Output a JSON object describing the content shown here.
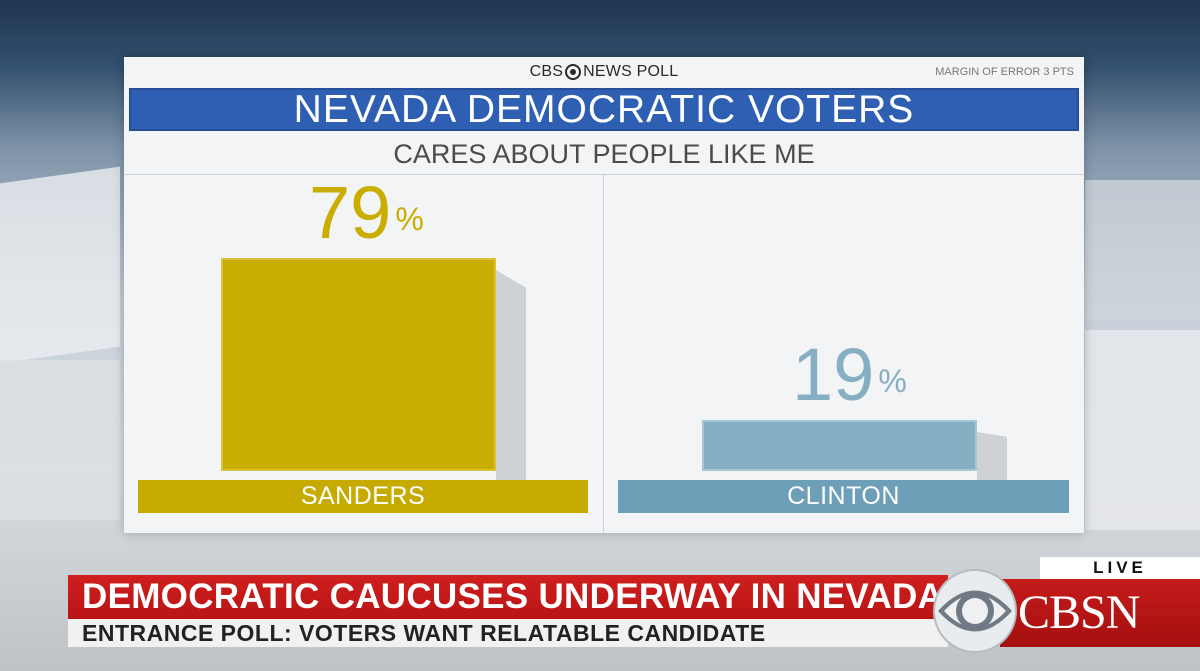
{
  "poll": {
    "brand_left": "CBS",
    "brand_right": "NEWS POLL",
    "margin_of_error": "MARGIN OF ERROR 3 PTS",
    "title": "NEVADA DEMOCRATIC VOTERS",
    "subtitle": "CARES ABOUT PEOPLE LIKE ME"
  },
  "chart_data": {
    "type": "bar",
    "title": "NEVADA DEMOCRATIC VOTERS",
    "subtitle": "CARES ABOUT PEOPLE LIKE ME",
    "categories": [
      "SANDERS",
      "CLINTON"
    ],
    "values": [
      79,
      19
    ],
    "value_labels": [
      "79",
      "19"
    ],
    "unit": "%",
    "colors": [
      "#c9ad00",
      "#86afc3"
    ],
    "label_bar_colors": [
      "#c7aa00",
      "#6d9fb8"
    ],
    "ylim": [
      0,
      100
    ],
    "grid": false,
    "legend": "none"
  },
  "lower_third": {
    "headline": "DEMOCRATIC CAUCUSES UNDERWAY IN NEVADA",
    "subhead": "ENTRANCE POLL: VOTERS WANT RELATABLE CANDIDATE",
    "live": "LIVE",
    "network": "CBSN"
  },
  "colors": {
    "title_blue": "#2f5fb3",
    "headline_red": "#c41a1a"
  },
  "icons": [
    "cbs-eye-icon"
  ]
}
